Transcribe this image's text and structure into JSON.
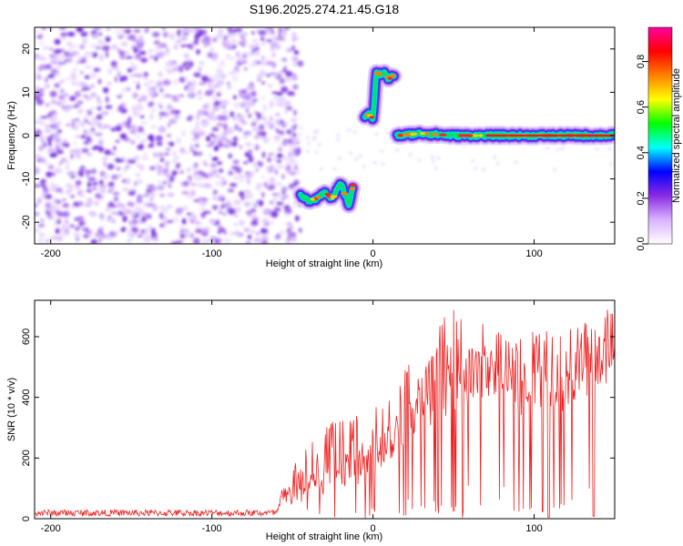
{
  "title": "S196.2025.274.21.45.G18",
  "chart_data": [
    {
      "type": "heatmap",
      "name": "spectrogram",
      "xlabel": "Height of straight line (km)",
      "ylabel": "Frequency (Hz)",
      "xlim": [
        -210,
        150
      ],
      "ylim": [
        -25,
        25
      ],
      "xticks": [
        -200,
        -100,
        0,
        100
      ],
      "yticks": [
        -20,
        -10,
        0,
        10,
        20
      ],
      "colorbar": {
        "label": "Normalized spectral amplitude",
        "range": [
          0.0,
          0.95
        ],
        "ticks": [
          0.0,
          0.2,
          0.4,
          0.6,
          0.8
        ],
        "tick_labels": [
          "0.0",
          "0.2",
          "0.4",
          "0.6",
          "0.8"
        ],
        "colormap": [
          "#ffffff",
          "#d9b3ff",
          "#8a2be2",
          "#0000ff",
          "#00ffff",
          "#00ff00",
          "#ffff00",
          "#ff8000",
          "#ff0000",
          "#ff00a0"
        ]
      },
      "traces": [
        {
          "segment": "dip",
          "x": [
            -45,
            -40,
            -35,
            -30,
            -25,
            -20,
            -15,
            -12
          ],
          "y": [
            -14,
            -15,
            -14.5,
            -13,
            -14.5,
            -11,
            -16,
            -11
          ]
        },
        {
          "segment": "rise",
          "x": [
            -5,
            -3,
            0,
            2,
            5,
            7,
            10,
            13
          ],
          "y": [
            4,
            5,
            4,
            14.5,
            14,
            14.5,
            13,
            14
          ]
        },
        {
          "segment": "flat",
          "x": [
            15,
            30,
            50,
            70,
            90,
            110,
            130,
            150
          ],
          "y": [
            0,
            0.5,
            0,
            0,
            0,
            0,
            0,
            0
          ]
        }
      ],
      "noise_region_x": [
        -210,
        -45
      ]
    },
    {
      "type": "line",
      "name": "snr",
      "xlabel": "Height of straight line (km)",
      "ylabel": "SNR (10 * v/v)",
      "xlim": [
        -210,
        150
      ],
      "ylim": [
        0,
        720
      ],
      "xticks": [
        -200,
        -100,
        0,
        100
      ],
      "yticks": [
        0,
        200,
        400,
        600
      ],
      "series": [
        {
          "name": "SNR",
          "color": "#ee2222",
          "x": [
            -210,
            -180,
            -150,
            -120,
            -90,
            -60,
            -55,
            -40,
            -25,
            -10,
            0,
            10,
            20,
            30,
            40,
            50,
            60,
            70,
            80,
            90,
            100,
            110,
            120,
            130,
            140,
            150
          ],
          "baseline": [
            15,
            15,
            14,
            15,
            16,
            15,
            30,
            60,
            90,
            110,
            150,
            180,
            250,
            280,
            320,
            350,
            370,
            400,
            410,
            340,
            340,
            330,
            340,
            400,
            420,
            440
          ],
          "peaks": [
            30,
            30,
            30,
            30,
            30,
            30,
            130,
            250,
            320,
            350,
            360,
            420,
            500,
            580,
            680,
            700,
            680,
            650,
            610,
            600,
            620,
            630,
            650,
            650,
            690,
            700
          ]
        }
      ]
    }
  ]
}
